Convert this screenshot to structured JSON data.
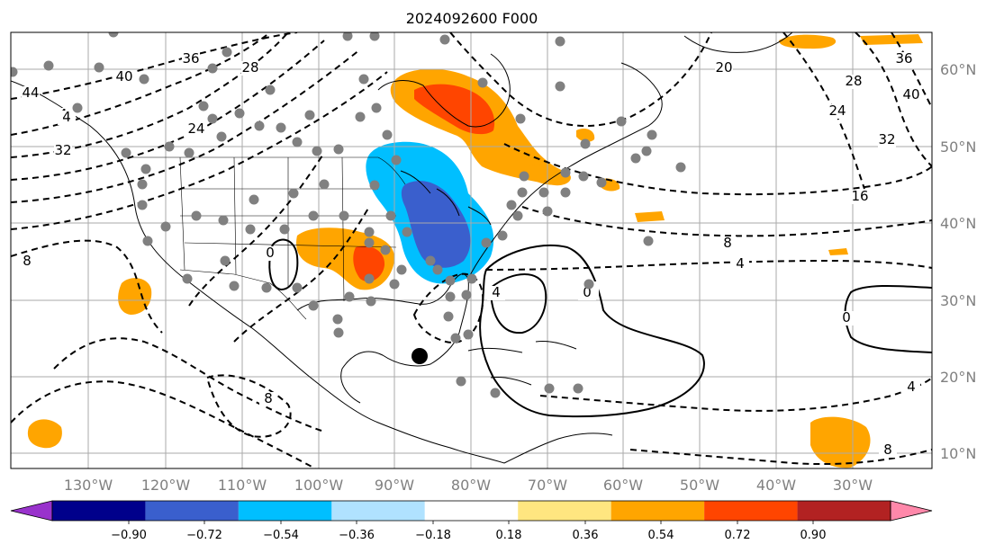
{
  "title": "2024092600 F000",
  "map": {
    "lon_labels": [
      "130°W",
      "120°W",
      "110°W",
      "100°W",
      "90°W",
      "80°W",
      "70°W",
      "60°W",
      "50°W",
      "40°W",
      "30°W"
    ],
    "lat_labels": [
      "60°N",
      "50°N",
      "40°N",
      "30°N",
      "20°N",
      "10°N"
    ],
    "contour_labels": [
      "44",
      "4",
      "32",
      "36",
      "28",
      "40",
      "24",
      "20",
      "24",
      "28",
      "36",
      "40",
      "32",
      "16",
      "8",
      "4",
      "0",
      "0",
      "0",
      "4",
      "4",
      "8",
      "8",
      "4",
      "0",
      "8"
    ],
    "grid": true,
    "storm_marker": "black-circle"
  },
  "colorbar": {
    "tick_labels": [
      "−0.90",
      "−0.72",
      "−0.54",
      "−0.36",
      "−0.18",
      "0.18",
      "0.36",
      "0.54",
      "0.72",
      "0.90"
    ],
    "colors": [
      "#9932cc",
      "#00008b",
      "#3a5fcd",
      "#00bfff",
      "#b0e2ff",
      "#ffffff",
      "#ffe680",
      "#ffa500",
      "#ff4500",
      "#b22222",
      "#ff88aa"
    ]
  }
}
